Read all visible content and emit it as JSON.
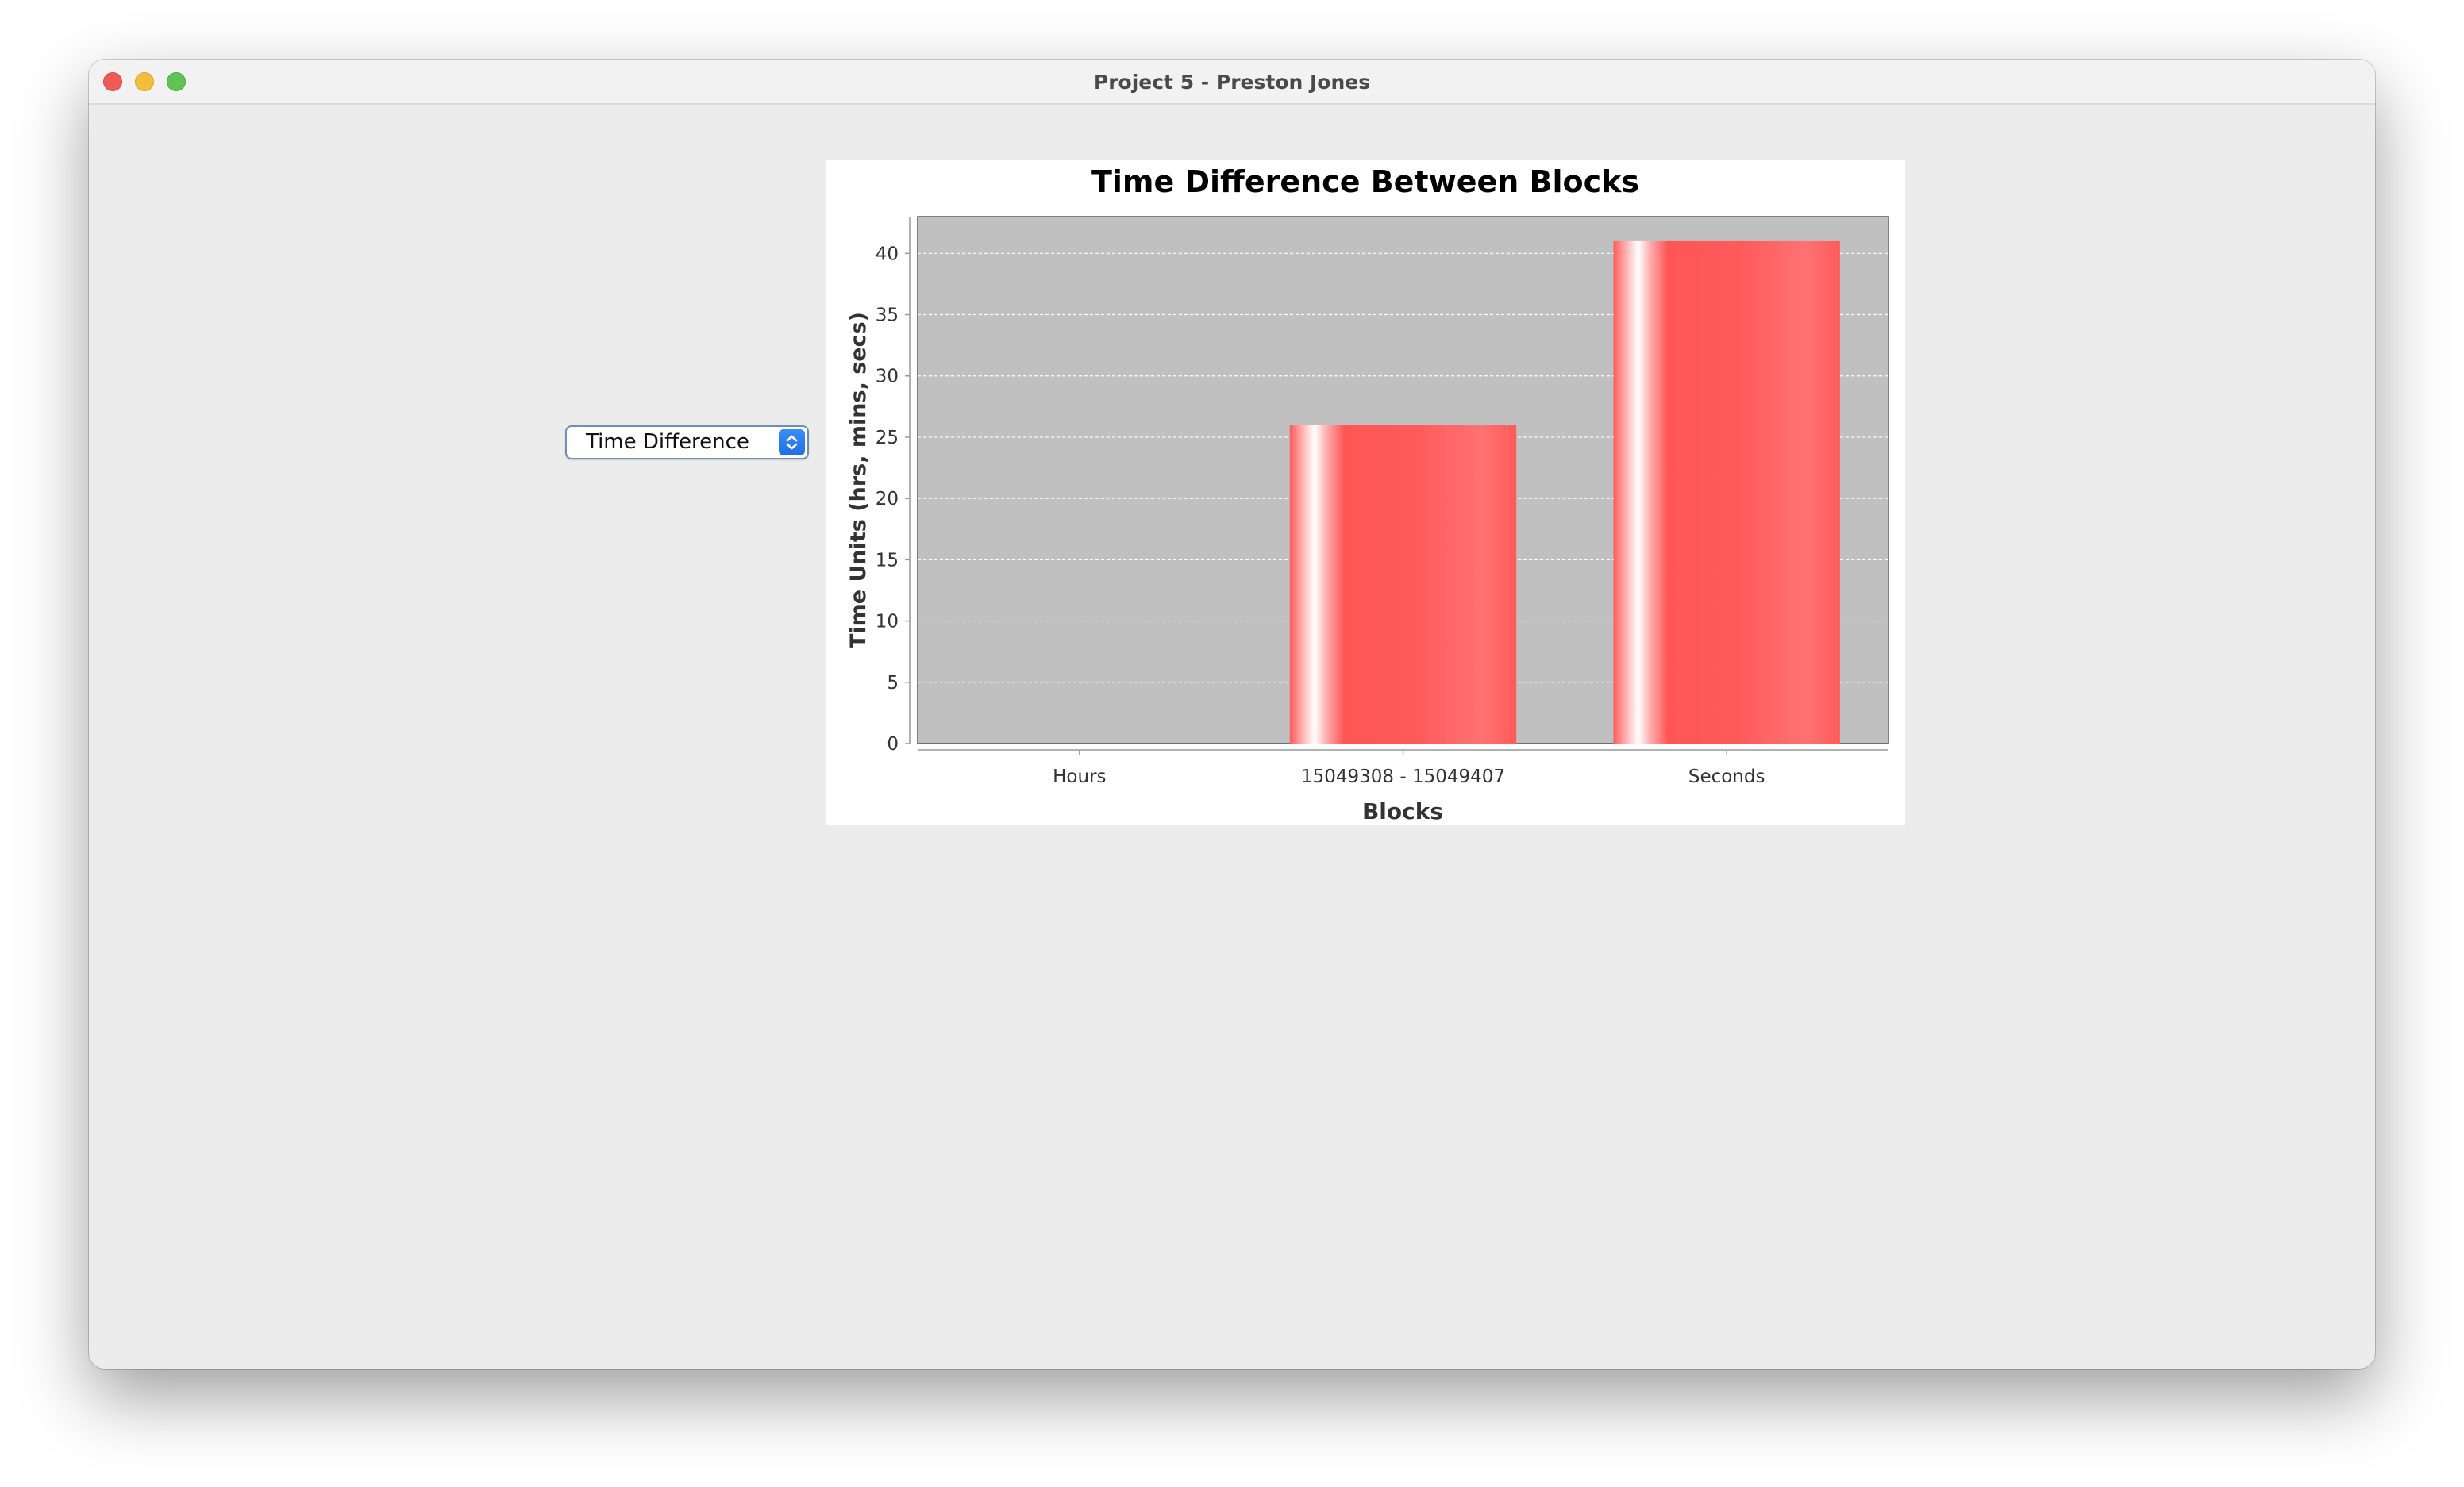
{
  "window": {
    "title": "Project 5 - Preston Jones"
  },
  "controls": {
    "selector_value": "Time Difference"
  },
  "icons": {
    "close": "close-icon",
    "minimize": "minimize-icon",
    "zoom": "zoom-icon",
    "combo_arrow": "up-down-chevron-icon"
  },
  "colors": {
    "bar": "#ff5555",
    "plot_background": "#c0c0c0",
    "accent": "#2a7cf0"
  },
  "chart_data": {
    "type": "bar",
    "title": "Time Difference Between Blocks",
    "xlabel": "Blocks",
    "ylabel": "Time Units (hrs, mins, secs)",
    "categories": [
      "Hours",
      "15049308 - 15049407",
      "Seconds"
    ],
    "values": [
      0,
      26,
      41
    ],
    "ylim": [
      0,
      43
    ],
    "yticks": [
      0,
      5,
      10,
      15,
      20,
      25,
      30,
      35,
      40
    ],
    "grid": true,
    "legend": "none"
  }
}
